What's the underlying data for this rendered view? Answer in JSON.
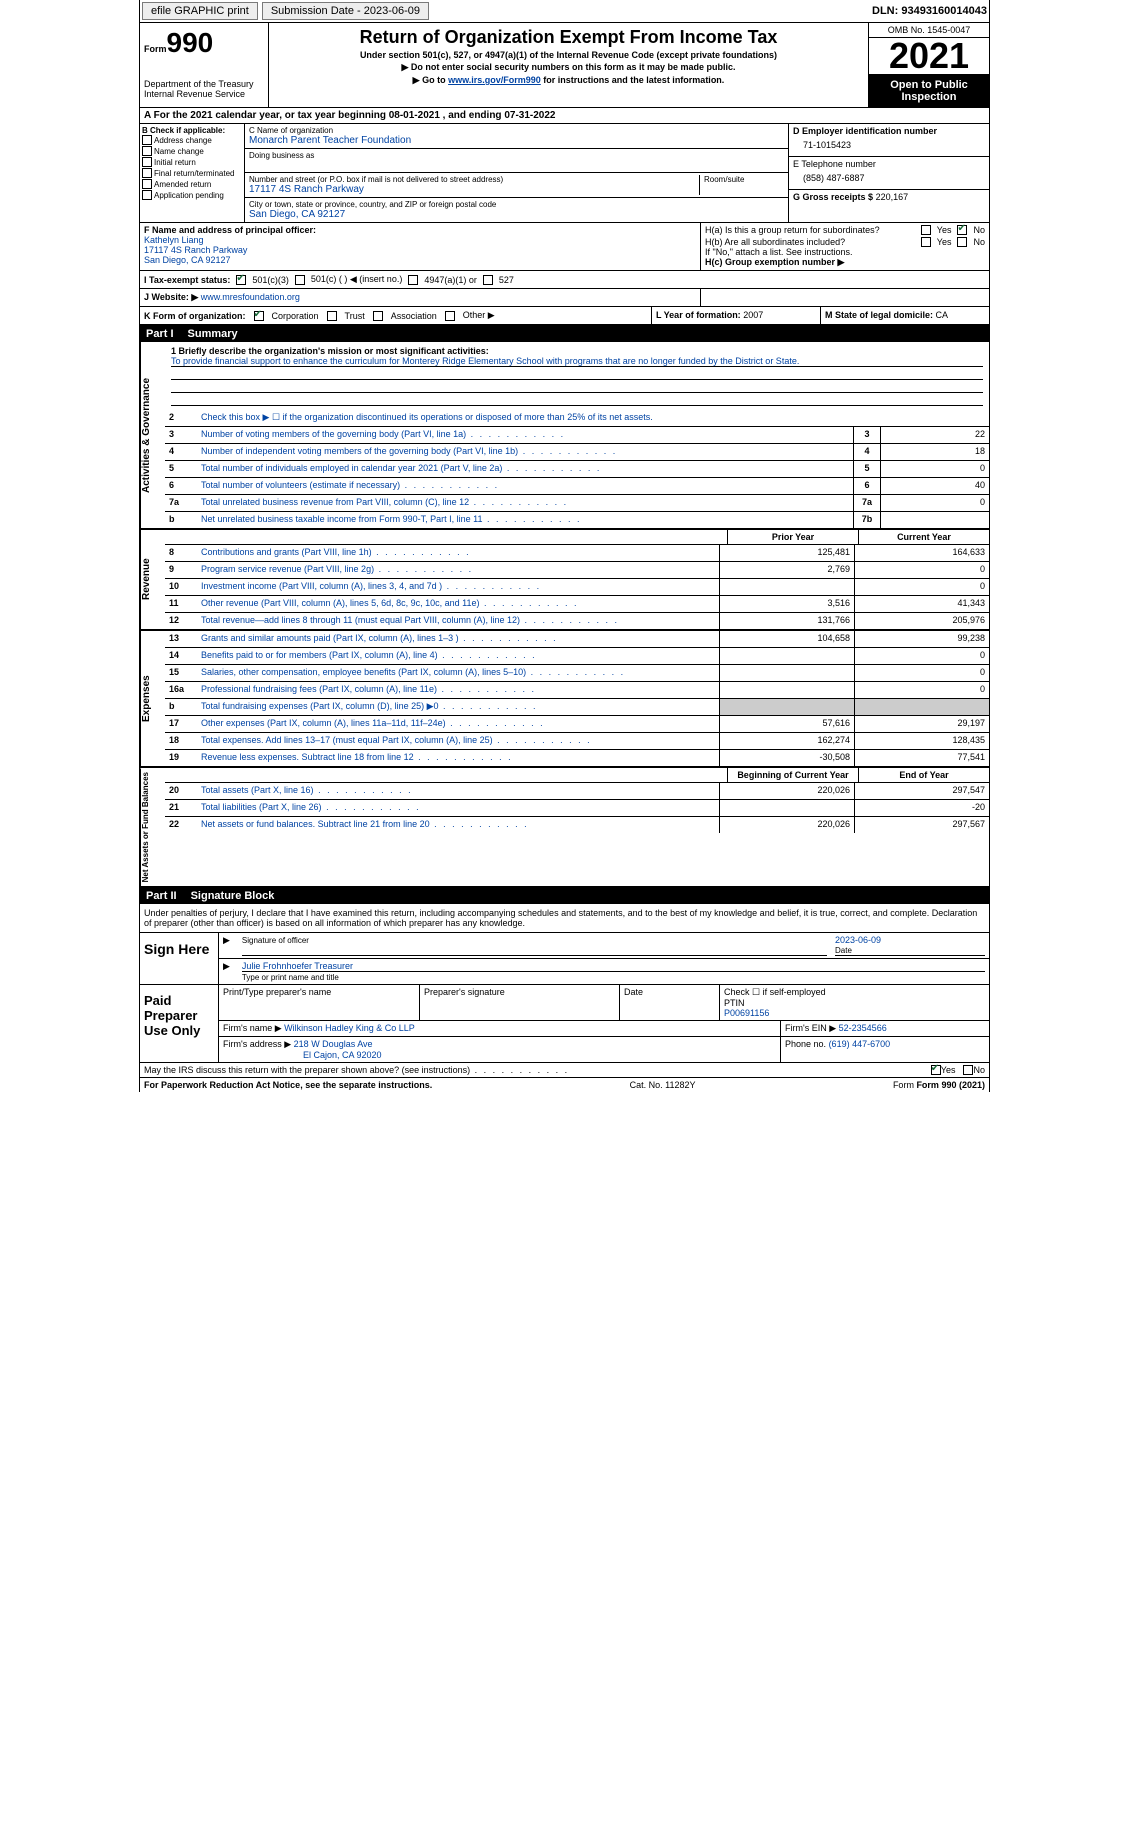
{
  "topbar": {
    "efile": "efile GRAPHIC print",
    "submission_label": "Submission Date - 2023-06-09",
    "dln_label": "DLN: 93493160014043"
  },
  "header": {
    "form_word": "Form",
    "form_num": "990",
    "dept": "Department of the Treasury",
    "irs": "Internal Revenue Service",
    "title": "Return of Organization Exempt From Income Tax",
    "sub1": "Under section 501(c), 527, or 4947(a)(1) of the Internal Revenue Code (except private foundations)",
    "sub2": "▶ Do not enter social security numbers on this form as it may be made public.",
    "sub3_pre": "▶ Go to ",
    "sub3_link": "www.irs.gov/Form990",
    "sub3_post": " for instructions and the latest information.",
    "omb": "OMB No. 1545-0047",
    "year": "2021",
    "open": "Open to Public Inspection"
  },
  "rowA": "A For the 2021 calendar year, or tax year beginning 08-01-2021   , and ending 07-31-2022",
  "colB": {
    "head": "B Check if applicable:",
    "items": [
      "Address change",
      "Name change",
      "Initial return",
      "Final return/terminated",
      "Amended return",
      "Application pending"
    ]
  },
  "colC": {
    "name_label": "C Name of organization",
    "name": "Monarch Parent Teacher Foundation",
    "dba_label": "Doing business as",
    "addr_label": "Number and street (or P.O. box if mail is not delivered to street address)",
    "room_label": "Room/suite",
    "addr": "17117 4S Ranch Parkway",
    "city_label": "City or town, state or province, country, and ZIP or foreign postal code",
    "city": "San Diego, CA  92127"
  },
  "colD": {
    "ein_label": "D Employer identification number",
    "ein": "71-1015423",
    "tel_label": "E Telephone number",
    "tel": "(858) 487-6887",
    "gross_label": "G Gross receipts $",
    "gross": "220,167"
  },
  "rowF": {
    "label": "F Name and address of principal officer:",
    "name": "Kathelyn Liang",
    "addr": "17117 4S Ranch Parkway",
    "city": "San Diego, CA  92127"
  },
  "rowH": {
    "ha": "H(a)  Is this a group return for subordinates?",
    "hb": "H(b)  Are all subordinates included?",
    "hb_note": "If \"No,\" attach a list. See instructions.",
    "hc": "H(c)  Group exemption number ▶",
    "yes": "Yes",
    "no": "No"
  },
  "rowI": {
    "label": "I   Tax-exempt status:",
    "o1": "501(c)(3)",
    "o2": "501(c) (  ) ◀ (insert no.)",
    "o3": "4947(a)(1) or",
    "o4": "527"
  },
  "rowJ": {
    "label": "J   Website: ▶",
    "val": "www.mresfoundation.org"
  },
  "rowK": {
    "label": "K Form of organization:",
    "o1": "Corporation",
    "o2": "Trust",
    "o3": "Association",
    "o4": "Other ▶",
    "l_label": "L Year of formation:",
    "l_val": "2007",
    "m_label": "M State of legal domicile:",
    "m_val": "CA"
  },
  "part1": {
    "num": "Part I",
    "title": "Summary"
  },
  "mission": {
    "q": "1   Briefly describe the organization's mission or most significant activities:",
    "text": "To provide financial support to enhance the curriculum for Monterey Ridge Elementary School with programs that are no longer funded by the District or State."
  },
  "governance": {
    "vlabel": "Activities & Governance",
    "r2": "Check this box ▶ ☐ if the organization discontinued its operations or disposed of more than 25% of its net assets.",
    "rows": [
      {
        "n": "3",
        "d": "Number of voting members of the governing body (Part VI, line 1a)",
        "b": "3",
        "v": "22"
      },
      {
        "n": "4",
        "d": "Number of independent voting members of the governing body (Part VI, line 1b)",
        "b": "4",
        "v": "18"
      },
      {
        "n": "5",
        "d": "Total number of individuals employed in calendar year 2021 (Part V, line 2a)",
        "b": "5",
        "v": "0"
      },
      {
        "n": "6",
        "d": "Total number of volunteers (estimate if necessary)",
        "b": "6",
        "v": "40"
      },
      {
        "n": "7a",
        "d": "Total unrelated business revenue from Part VIII, column (C), line 12",
        "b": "7a",
        "v": "0"
      },
      {
        "n": "b",
        "d": "Net unrelated business taxable income from Form 990-T, Part I, line 11",
        "b": "7b",
        "v": ""
      }
    ]
  },
  "revenue": {
    "vlabel": "Revenue",
    "head_prior": "Prior Year",
    "head_curr": "Current Year",
    "rows": [
      {
        "n": "8",
        "d": "Contributions and grants (Part VIII, line 1h)",
        "p": "125,481",
        "c": "164,633"
      },
      {
        "n": "9",
        "d": "Program service revenue (Part VIII, line 2g)",
        "p": "2,769",
        "c": "0"
      },
      {
        "n": "10",
        "d": "Investment income (Part VIII, column (A), lines 3, 4, and 7d )",
        "p": "",
        "c": "0"
      },
      {
        "n": "11",
        "d": "Other revenue (Part VIII, column (A), lines 5, 6d, 8c, 9c, 10c, and 11e)",
        "p": "3,516",
        "c": "41,343"
      },
      {
        "n": "12",
        "d": "Total revenue—add lines 8 through 11 (must equal Part VIII, column (A), line 12)",
        "p": "131,766",
        "c": "205,976"
      }
    ]
  },
  "expenses": {
    "vlabel": "Expenses",
    "rows": [
      {
        "n": "13",
        "d": "Grants and similar amounts paid (Part IX, column (A), lines 1–3 )",
        "p": "104,658",
        "c": "99,238"
      },
      {
        "n": "14",
        "d": "Benefits paid to or for members (Part IX, column (A), line 4)",
        "p": "",
        "c": "0"
      },
      {
        "n": "15",
        "d": "Salaries, other compensation, employee benefits (Part IX, column (A), lines 5–10)",
        "p": "",
        "c": "0"
      },
      {
        "n": "16a",
        "d": "Professional fundraising fees (Part IX, column (A), line 11e)",
        "p": "",
        "c": "0"
      },
      {
        "n": "b",
        "d": "Total fundraising expenses (Part IX, column (D), line 25) ▶0",
        "p": "SHADE",
        "c": "SHADE"
      },
      {
        "n": "17",
        "d": "Other expenses (Part IX, column (A), lines 11a–11d, 11f–24e)",
        "p": "57,616",
        "c": "29,197"
      },
      {
        "n": "18",
        "d": "Total expenses. Add lines 13–17 (must equal Part IX, column (A), line 25)",
        "p": "162,274",
        "c": "128,435"
      },
      {
        "n": "19",
        "d": "Revenue less expenses. Subtract line 18 from line 12",
        "p": "-30,508",
        "c": "77,541"
      }
    ]
  },
  "netassets": {
    "vlabel": "Net Assets or Fund Balances",
    "head_prior": "Beginning of Current Year",
    "head_curr": "End of Year",
    "rows": [
      {
        "n": "20",
        "d": "Total assets (Part X, line 16)",
        "p": "220,026",
        "c": "297,547"
      },
      {
        "n": "21",
        "d": "Total liabilities (Part X, line 26)",
        "p": "",
        "c": "-20"
      },
      {
        "n": "22",
        "d": "Net assets or fund balances. Subtract line 21 from line 20",
        "p": "220,026",
        "c": "297,567"
      }
    ]
  },
  "part2": {
    "num": "Part II",
    "title": "Signature Block"
  },
  "sig": {
    "declare": "Under penalties of perjury, I declare that I have examined this return, including accompanying schedules and statements, and to the best of my knowledge and belief, it is true, correct, and complete. Declaration of preparer (other than officer) is based on all information of which preparer has any knowledge.",
    "sign_here": "Sign Here",
    "sig_officer": "Signature of officer",
    "date": "Date",
    "date_val": "2023-06-09",
    "name": "Julie Frohnhoefer  Treasurer",
    "name_label": "Type or print name and title",
    "paid": "Paid Preparer Use Only",
    "prep_name_label": "Print/Type preparer's name",
    "prep_sig_label": "Preparer's signature",
    "prep_date_label": "Date",
    "check_self": "Check ☐ if self-employed",
    "ptin_label": "PTIN",
    "ptin": "P00691156",
    "firm_name_label": "Firm's name    ▶",
    "firm_name": "Wilkinson Hadley King & Co LLP",
    "firm_ein_label": "Firm's EIN ▶",
    "firm_ein": "52-2354566",
    "firm_addr_label": "Firm's address ▶",
    "firm_addr1": "218 W Douglas Ave",
    "firm_addr2": "El Cajon, CA  92020",
    "phone_label": "Phone no.",
    "phone": "(619) 447-6700",
    "may_irs": "May the IRS discuss this return with the preparer shown above? (see instructions)",
    "yes": "Yes",
    "no": "No"
  },
  "footer": {
    "pra": "For Paperwork Reduction Act Notice, see the separate instructions.",
    "cat": "Cat. No. 11282Y",
    "form": "Form 990 (2021)"
  }
}
